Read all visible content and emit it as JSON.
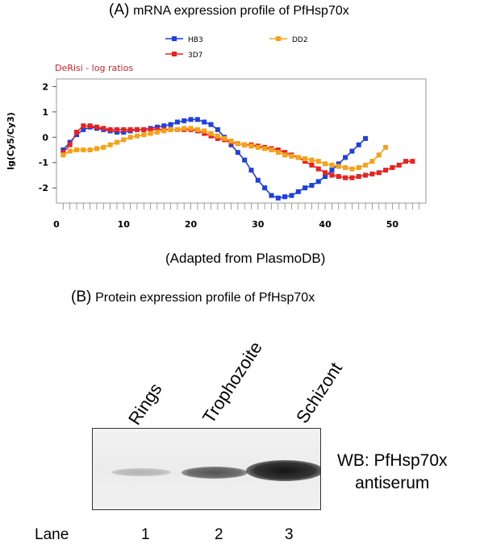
{
  "panel_a": {
    "letter": "(A)",
    "title": "mRNA expression profile of PfHsp70x",
    "source_note": "(Adapted from PlasmoDB)",
    "chart_label": "DeRisi - log ratios"
  },
  "chart_data": {
    "type": "line",
    "title": "DeRisi - log ratios",
    "xlabel": "",
    "ylabel": "lg(Cy5/Cy3)",
    "xlim": [
      0,
      55
    ],
    "ylim": [
      -2.6,
      2.3
    ],
    "xticks": [
      0,
      10,
      20,
      30,
      40,
      50
    ],
    "yticks": [
      2,
      1,
      0,
      -1,
      -2
    ],
    "grid": false,
    "legend_position": "top",
    "series": [
      {
        "name": "HB3",
        "color": "#1f3fe0",
        "x": [
          1,
          2,
          3,
          4,
          5,
          6,
          7,
          8,
          9,
          10,
          11,
          12,
          13,
          14,
          15,
          16,
          17,
          18,
          19,
          20,
          21,
          22,
          23,
          24,
          25,
          26,
          27,
          28,
          29,
          30,
          31,
          32,
          33,
          34,
          35,
          36,
          37,
          38,
          39,
          40,
          41,
          42,
          43,
          44,
          45,
          46
        ],
        "y": [
          -0.5,
          -0.2,
          0.1,
          0.3,
          0.4,
          0.35,
          0.3,
          0.25,
          0.2,
          0.2,
          0.25,
          0.3,
          0.3,
          0.35,
          0.4,
          0.45,
          0.5,
          0.6,
          0.65,
          0.7,
          0.7,
          0.6,
          0.5,
          0.3,
          0.0,
          -0.3,
          -0.6,
          -0.9,
          -1.3,
          -1.7,
          -2.0,
          -2.3,
          -2.4,
          -2.35,
          -2.3,
          -2.15,
          -2.0,
          -1.9,
          -1.75,
          -1.55,
          -1.3,
          -1.05,
          -0.8,
          -0.55,
          -0.3,
          -0.05
        ]
      },
      {
        "name": "3D7",
        "color": "#e8231f",
        "x": [
          1,
          2,
          3,
          4,
          5,
          6,
          7,
          8,
          9,
          10,
          11,
          12,
          13,
          14,
          15,
          16,
          17,
          18,
          19,
          20,
          21,
          22,
          23,
          24,
          25,
          26,
          27,
          28,
          29,
          30,
          31,
          32,
          33,
          34,
          35,
          36,
          37,
          38,
          39,
          40,
          41,
          42,
          43,
          44,
          45,
          46,
          47,
          48,
          49,
          50,
          51,
          52,
          53
        ],
        "y": [
          -0.6,
          -0.3,
          0.2,
          0.45,
          0.45,
          0.4,
          0.35,
          0.3,
          0.3,
          0.3,
          0.3,
          0.3,
          0.3,
          0.3,
          0.3,
          0.3,
          0.3,
          0.3,
          0.3,
          0.3,
          0.25,
          0.15,
          0.05,
          -0.05,
          -0.1,
          -0.2,
          -0.25,
          -0.3,
          -0.3,
          -0.35,
          -0.4,
          -0.45,
          -0.5,
          -0.6,
          -0.7,
          -0.8,
          -0.95,
          -1.1,
          -1.25,
          -1.4,
          -1.5,
          -1.55,
          -1.6,
          -1.6,
          -1.55,
          -1.5,
          -1.45,
          -1.4,
          -1.3,
          -1.2,
          -1.1,
          -0.95,
          -0.95
        ]
      },
      {
        "name": "DD2",
        "color": "#f5a21b",
        "x": [
          1,
          2,
          3,
          4,
          5,
          6,
          7,
          8,
          9,
          10,
          11,
          12,
          13,
          14,
          15,
          16,
          17,
          18,
          19,
          20,
          21,
          22,
          23,
          24,
          25,
          26,
          27,
          28,
          29,
          30,
          31,
          32,
          33,
          34,
          35,
          36,
          37,
          38,
          39,
          40,
          41,
          42,
          43,
          44,
          45,
          46,
          47,
          48,
          49
        ],
        "y": [
          -0.7,
          -0.55,
          -0.5,
          -0.5,
          -0.5,
          -0.45,
          -0.4,
          -0.3,
          -0.2,
          -0.1,
          0.0,
          0.05,
          0.1,
          0.15,
          0.2,
          0.25,
          0.3,
          0.3,
          0.35,
          0.35,
          0.3,
          0.25,
          0.15,
          0.05,
          -0.05,
          -0.15,
          -0.25,
          -0.3,
          -0.35,
          -0.4,
          -0.45,
          -0.5,
          -0.6,
          -0.7,
          -0.75,
          -0.8,
          -0.85,
          -0.9,
          -0.95,
          -1.05,
          -1.1,
          -1.15,
          -1.2,
          -1.25,
          -1.2,
          -1.1,
          -0.95,
          -0.7,
          -0.4
        ]
      }
    ]
  },
  "panel_b": {
    "letter": "(B)",
    "title": "Protein expression profile of PfHsp70x",
    "lanes": [
      {
        "label": "Rings",
        "number": "1",
        "band_intensity": 0.25
      },
      {
        "label": "Trophozoite",
        "number": "2",
        "band_intensity": 0.75
      },
      {
        "label": "Schizont",
        "number": "3",
        "band_intensity": 1.0
      }
    ],
    "lane_row_label": "Lane",
    "wb_label_line1": "WB: PfHsp70x",
    "wb_label_line2": "antiserum"
  }
}
